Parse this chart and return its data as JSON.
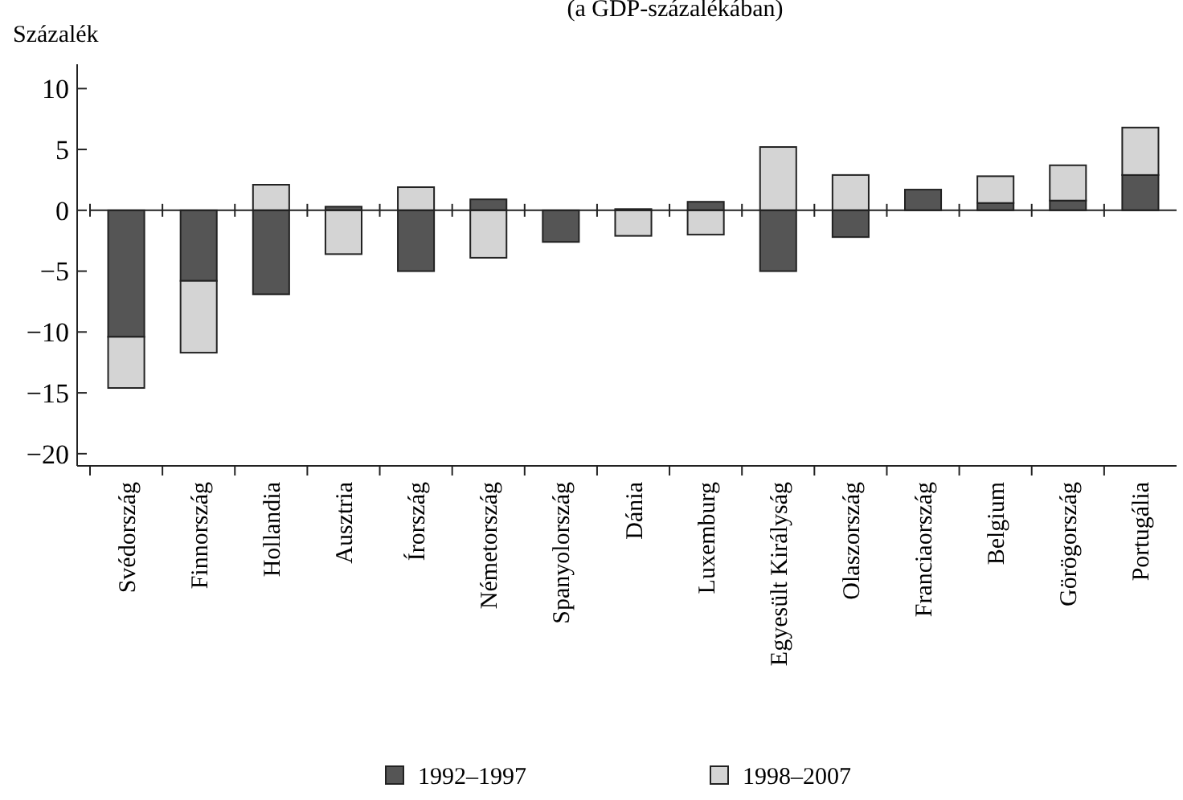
{
  "chart_data": {
    "type": "bar",
    "title": "(a GDP-százalékában)",
    "ylabel": "Százalék",
    "stacked": true,
    "categories": [
      "Svédország",
      "Finnország",
      "Hollandia",
      "Ausztria",
      "Írország",
      "Németország",
      "Spanyolország",
      "Dánia",
      "Luxemburg",
      "Egyesült Királyság",
      "Olaszország",
      "Franciaország",
      "Belgium",
      "Görögország",
      "Portugália"
    ],
    "series": [
      {
        "name": "1992–1997",
        "color": "#555555",
        "values": [
          -10.4,
          -5.8,
          -6.9,
          0.3,
          -5.0,
          0.9,
          -2.6,
          0.1,
          0.7,
          -5.0,
          -2.2,
          1.7,
          0.6,
          0.8,
          2.9
        ]
      },
      {
        "name": "1998–2007",
        "color": "#d4d4d4",
        "values": [
          -4.2,
          -5.9,
          2.1,
          -3.6,
          1.9,
          -3.9,
          0,
          -2.1,
          -2.0,
          5.2,
          2.9,
          0,
          2.2,
          2.9,
          3.9
        ]
      }
    ],
    "ylim": [
      -21,
      12
    ],
    "yticks": [
      {
        "value": -20,
        "label": "−20"
      },
      {
        "value": -15,
        "label": "−15"
      },
      {
        "value": -10,
        "label": "−10"
      },
      {
        "value": -5,
        "label": "−5"
      },
      0,
      5,
      10
    ],
    "legend": "bottom"
  }
}
